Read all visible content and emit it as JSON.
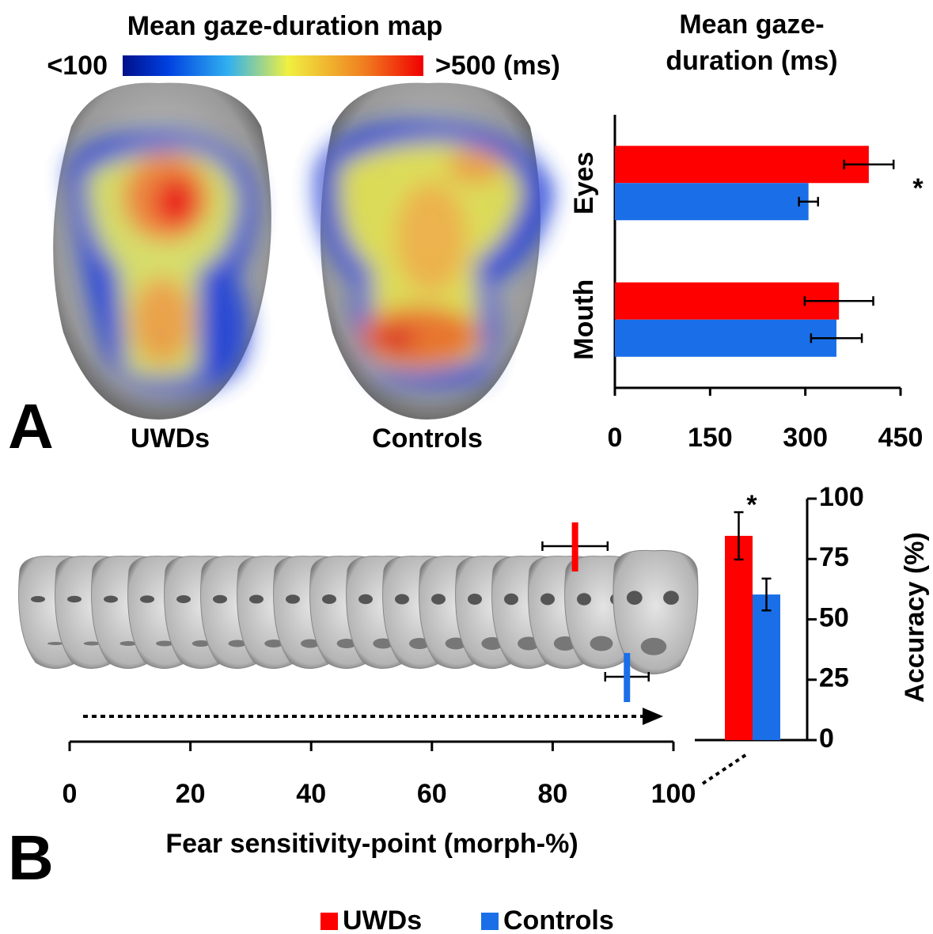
{
  "figure": {
    "panel_a": "A",
    "panel_b": "B",
    "heatmap_title": "Mean gaze-duration map",
    "colorbar_min": "<100",
    "colorbar_max": ">500 (ms)",
    "face_labels": [
      "UWDs",
      "Controls"
    ]
  },
  "chart_data": [
    {
      "type": "hbar",
      "title": "Mean gaze-duration (ms)",
      "categories": [
        "Eyes",
        "Mouth"
      ],
      "series": [
        {
          "name": "UWDs",
          "color": "#ff0000",
          "values": [
            400,
            353
          ],
          "errors": [
            39,
            54
          ]
        },
        {
          "name": "Controls",
          "color": "#1a6fe8",
          "values": [
            305,
            349
          ],
          "errors": [
            15,
            40
          ]
        }
      ],
      "xlim": [
        0,
        450
      ],
      "xticks": [
        0,
        150,
        300,
        450
      ],
      "annotations": [
        "*"
      ]
    },
    {
      "type": "strip",
      "xlabel": "Fear sensitivity-point (morph-%)",
      "series": [
        {
          "name": "UWDs",
          "color": "#ff0000",
          "values": [
            83.7
          ],
          "errors": [
            5.4
          ]
        },
        {
          "name": "Controls",
          "color": "#1a6fe8",
          "values": [
            92.3
          ],
          "errors": [
            3.6
          ]
        }
      ],
      "xlim": [
        0,
        100
      ],
      "xticks": [
        0,
        20,
        40,
        60,
        80,
        100
      ]
    },
    {
      "type": "bar",
      "ylabel": "Accuracy (%)",
      "series": [
        {
          "name": "UWDs",
          "color": "#ff0000",
          "values": [
            84.6
          ],
          "errors": [
            9.8
          ]
        },
        {
          "name": "Controls",
          "color": "#1a6fe8",
          "values": [
            60.3
          ],
          "errors": [
            6.6
          ]
        }
      ],
      "ylim": [
        0,
        100
      ],
      "yticks": [
        0,
        25,
        50,
        75,
        100
      ],
      "annotations": [
        "*"
      ]
    }
  ]
}
